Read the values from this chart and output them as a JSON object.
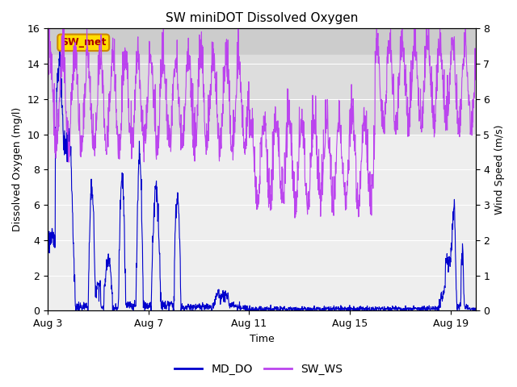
{
  "title": "SW miniDOT Dissolved Oxygen",
  "ylabel_left": "Dissolved Oxygen (mg/l)",
  "ylabel_right": "Wind Speed (m/s)",
  "xlabel": "Time",
  "ylim_left": [
    0,
    16
  ],
  "ylim_right": [
    0.0,
    8.0
  ],
  "yticks_left": [
    0,
    2,
    4,
    6,
    8,
    10,
    12,
    14,
    16
  ],
  "yticks_right": [
    0.0,
    1.0,
    2.0,
    3.0,
    4.0,
    5.0,
    6.0,
    7.0,
    8.0
  ],
  "xtick_labels": [
    "Aug 3",
    "Aug 7",
    "Aug 11",
    "Aug 15",
    "Aug 19"
  ],
  "xtick_days": [
    0,
    4,
    8,
    12,
    16
  ],
  "color_do": "#0000cc",
  "color_ws": "#bb44ee",
  "label_do": "MD_DO",
  "label_ws": "SW_WS",
  "annotation_text": "SW_met",
  "annotation_color": "#aa0000",
  "annotation_bg": "#ffdd00",
  "annotation_border": "#cc8800",
  "shade_top_ymin": 14.8,
  "shade_top_ymax": 16,
  "shade_mid_ymin": 10.0,
  "shade_mid_ymax": 14.8,
  "shade_color_top": "#cccccc",
  "shade_color_mid": "#dddddd",
  "shade_color_bot": "#eeeeee",
  "background_color": "#eeeeee",
  "title_fontsize": 11,
  "axis_fontsize": 9,
  "tick_fontsize": 9,
  "legend_fontsize": 10
}
